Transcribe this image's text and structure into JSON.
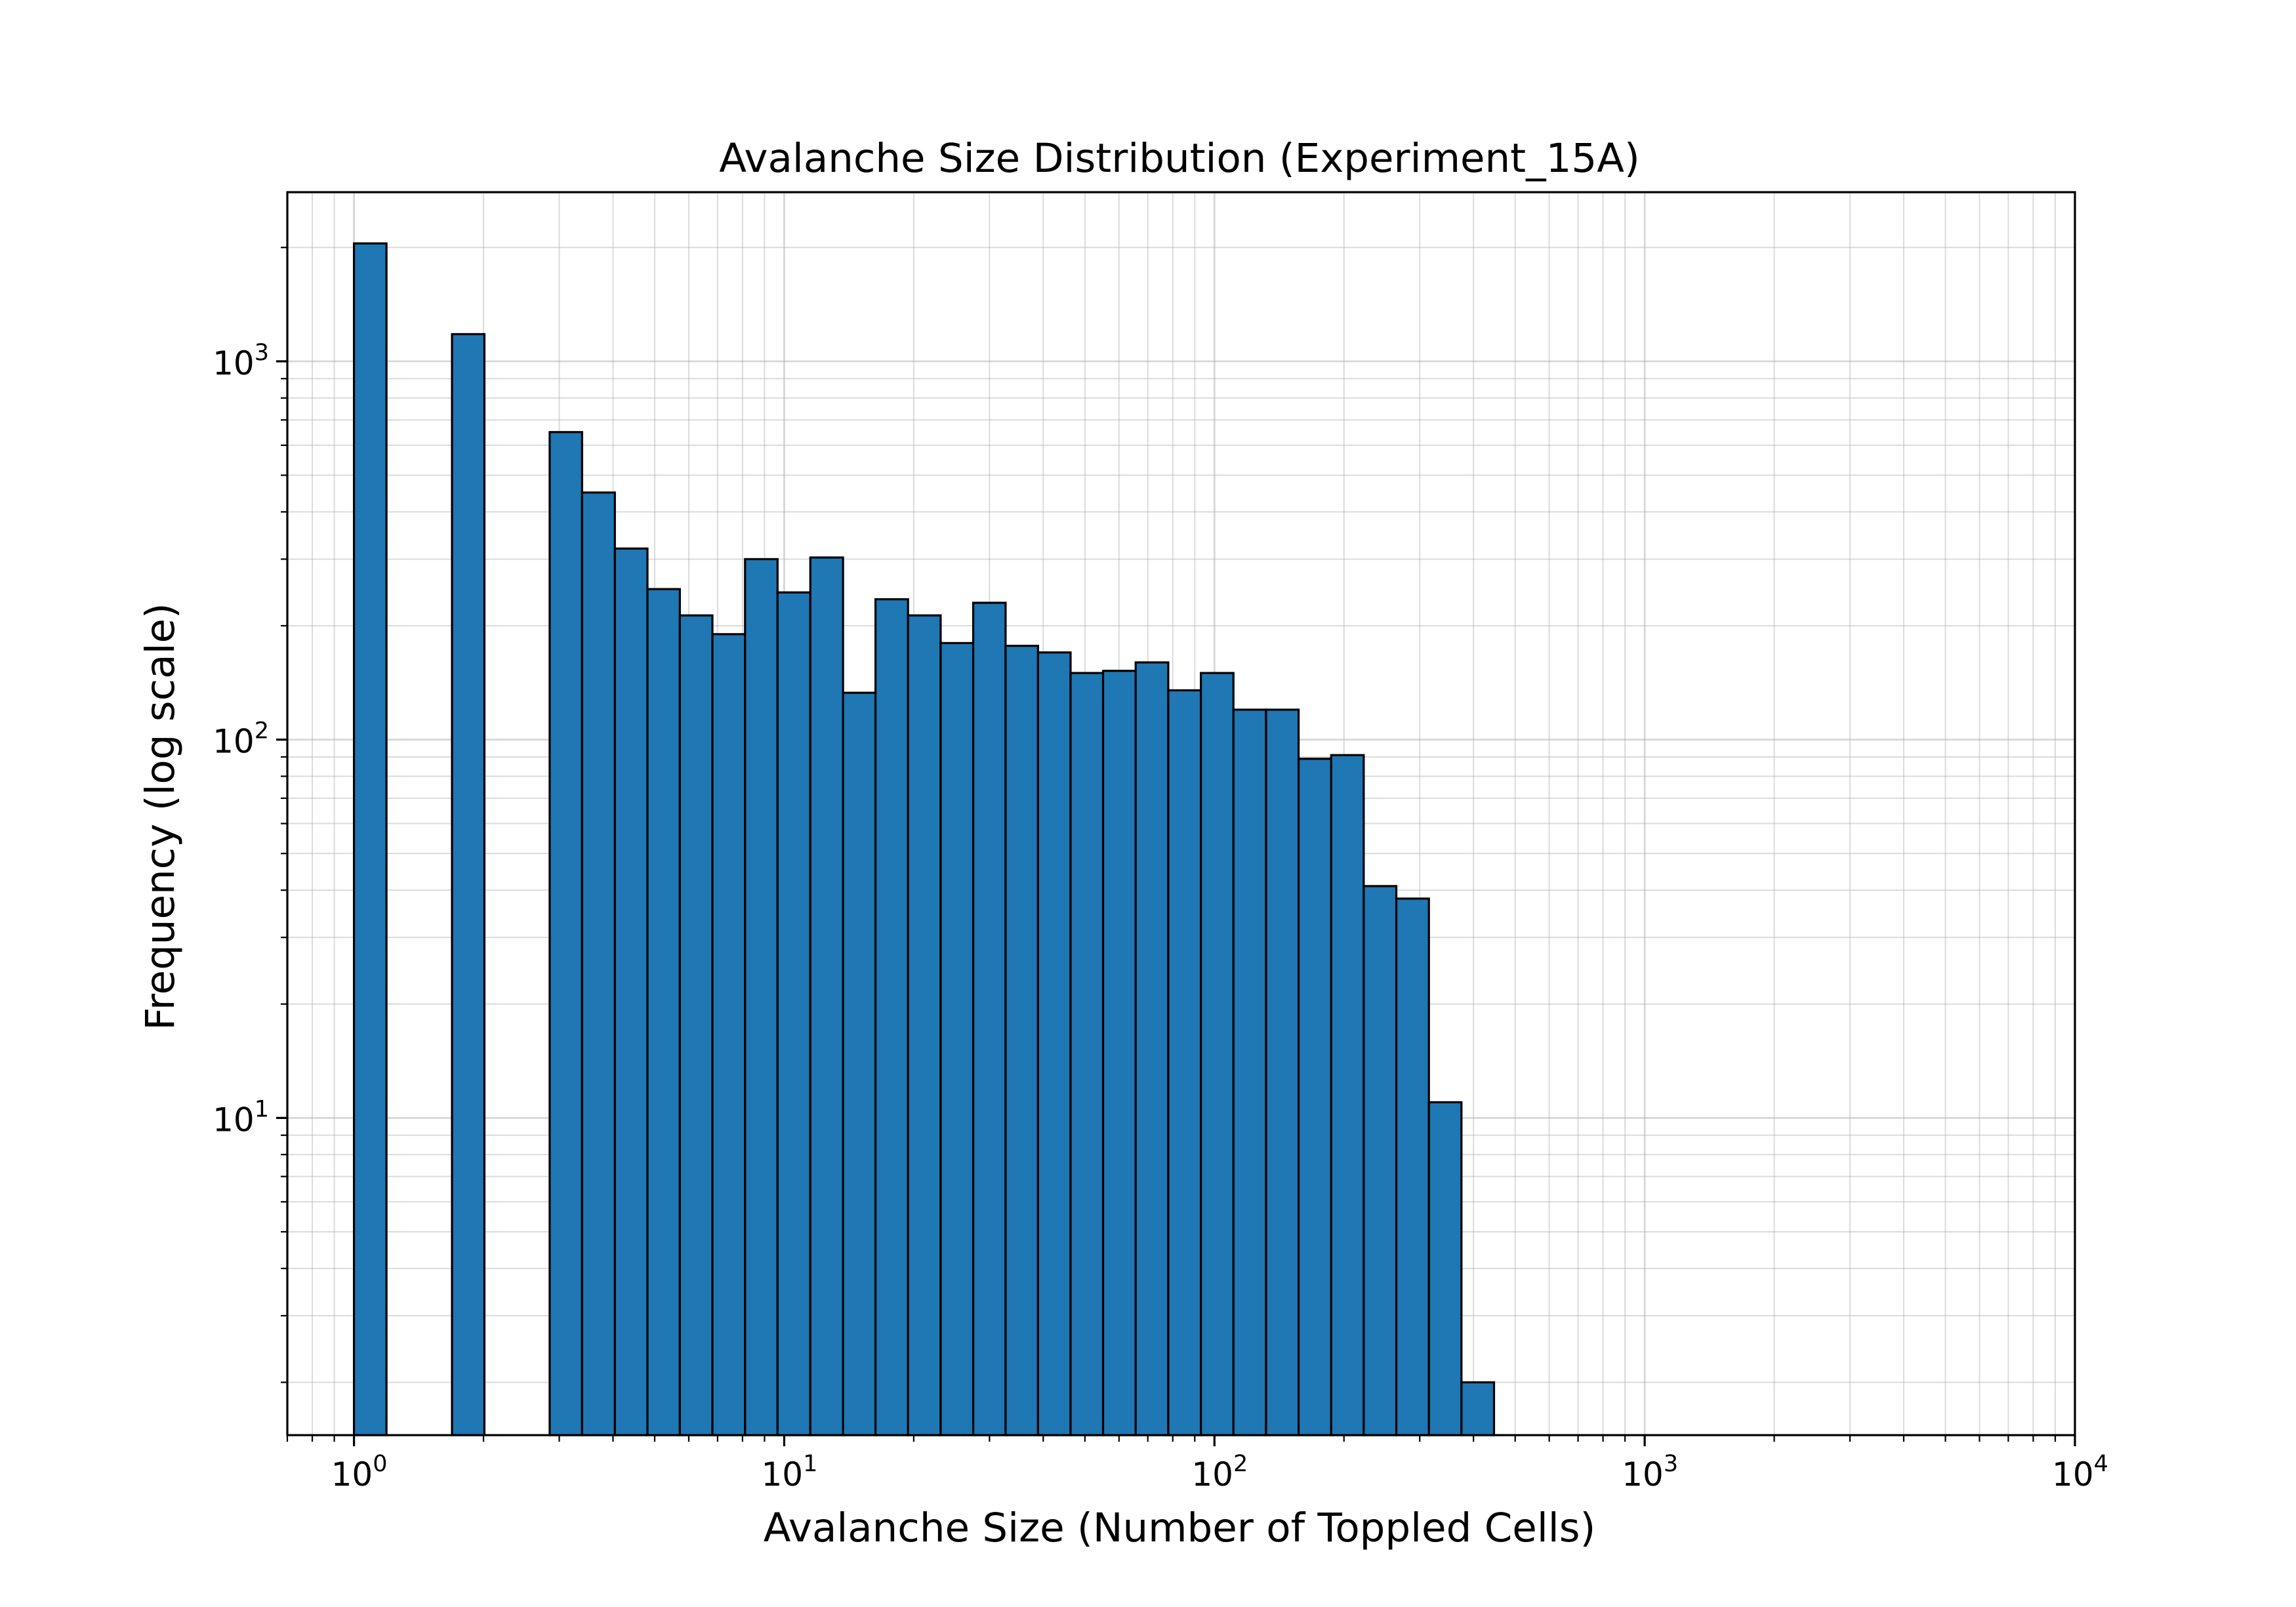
{
  "chart_data": {
    "type": "bar",
    "subtype": "histogram",
    "title": "Avalanche Size Distribution (Experiment_15A)",
    "xlabel": "Avalanche Size (Number of Toppled Cells)",
    "ylabel": "Frequency (log scale)",
    "xscale": "log",
    "yscale": "log",
    "xlim": [
      0.7,
      10000
    ],
    "ylim": [
      1.45,
      2800
    ],
    "grid": "both (major and minor)",
    "legend": "none",
    "bar_color": "#1f77b4",
    "edge_color": "#000000",
    "x_tick_labels": [
      {
        "base": "10",
        "exp": "0",
        "value": 1
      },
      {
        "base": "10",
        "exp": "1",
        "value": 10
      },
      {
        "base": "10",
        "exp": "2",
        "value": 100
      },
      {
        "base": "10",
        "exp": "3",
        "value": 1000
      },
      {
        "base": "10",
        "exp": "4",
        "value": 10000
      }
    ],
    "y_tick_labels": [
      {
        "base": "10",
        "exp": "1",
        "value": 10
      },
      {
        "base": "10",
        "exp": "2",
        "value": 100
      },
      {
        "base": "10",
        "exp": "3",
        "value": 1000
      }
    ],
    "bins": [
      {
        "x0": 1.0,
        "x1": 1.19,
        "count": 2050
      },
      {
        "x0": 1.19,
        "x1": 1.41,
        "count": 0
      },
      {
        "x0": 1.41,
        "x1": 1.69,
        "count": 0
      },
      {
        "x0": 1.69,
        "x1": 2.01,
        "count": 1180
      },
      {
        "x0": 2.01,
        "x1": 2.39,
        "count": 0
      },
      {
        "x0": 2.39,
        "x1": 2.85,
        "count": 0
      },
      {
        "x0": 2.85,
        "x1": 3.39,
        "count": 650
      },
      {
        "x0": 3.39,
        "x1": 4.04,
        "count": 450
      },
      {
        "x0": 4.04,
        "x1": 4.81,
        "count": 320
      },
      {
        "x0": 4.81,
        "x1": 5.72,
        "count": 250
      },
      {
        "x0": 5.72,
        "x1": 6.81,
        "count": 213
      },
      {
        "x0": 6.81,
        "x1": 8.11,
        "count": 190
      },
      {
        "x0": 8.11,
        "x1": 9.65,
        "count": 300
      },
      {
        "x0": 9.65,
        "x1": 11.5,
        "count": 245
      },
      {
        "x0": 11.5,
        "x1": 13.7,
        "count": 303
      },
      {
        "x0": 13.7,
        "x1": 16.3,
        "count": 133
      },
      {
        "x0": 16.3,
        "x1": 19.4,
        "count": 235
      },
      {
        "x0": 19.4,
        "x1": 23.1,
        "count": 213
      },
      {
        "x0": 23.1,
        "x1": 27.5,
        "count": 180
      },
      {
        "x0": 27.5,
        "x1": 32.7,
        "count": 230
      },
      {
        "x0": 32.7,
        "x1": 38.9,
        "count": 177
      },
      {
        "x0": 38.9,
        "x1": 46.3,
        "count": 170
      },
      {
        "x0": 46.3,
        "x1": 55.1,
        "count": 150
      },
      {
        "x0": 55.1,
        "x1": 65.6,
        "count": 152
      },
      {
        "x0": 65.6,
        "x1": 78.1,
        "count": 160
      },
      {
        "x0": 78.1,
        "x1": 93.0,
        "count": 135
      },
      {
        "x0": 93.0,
        "x1": 110.7,
        "count": 150
      },
      {
        "x0": 110.7,
        "x1": 131.8,
        "count": 120
      },
      {
        "x0": 131.8,
        "x1": 156.9,
        "count": 120
      },
      {
        "x0": 156.9,
        "x1": 186.8,
        "count": 89
      },
      {
        "x0": 186.8,
        "x1": 222.3,
        "count": 91
      },
      {
        "x0": 222.3,
        "x1": 264.7,
        "count": 41
      },
      {
        "x0": 264.7,
        "x1": 315.1,
        "count": 38
      },
      {
        "x0": 315.1,
        "x1": 375.1,
        "count": 11
      },
      {
        "x0": 375.1,
        "x1": 446.5,
        "count": 2
      }
    ]
  }
}
